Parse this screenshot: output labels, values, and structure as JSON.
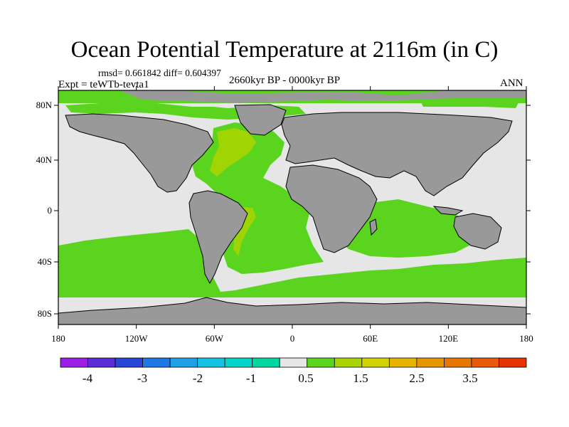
{
  "title": "Ocean Potential Temperature at 2116m (in C)",
  "stats": "rmsd= 0.661842 diff= 0.604397",
  "experiment": "Expt = teWTb-tevta1",
  "period": "2660kyr BP - 0000kyr BP",
  "season": "ANN",
  "colors": {
    "land": "#999999",
    "near_zero": "#e6e6e6",
    "positive_light": "#5ad41e",
    "positive_mid": "#a8d400",
    "cyan": "#00d7b4",
    "coast": "#000000"
  },
  "map": {
    "lat_ticks": [
      "80N",
      "40N",
      "0",
      "40S",
      "80S"
    ],
    "lon_ticks": [
      "180",
      "120W",
      "60W",
      "0",
      "60E",
      "120E",
      "180"
    ]
  },
  "colorbar": {
    "colors": [
      "#9b1ee6",
      "#5a2dd7",
      "#2846d7",
      "#1e78e6",
      "#1ea0e6",
      "#14c3e1",
      "#00d7c8",
      "#00d7a0",
      "#e6e6e6",
      "#5ad41e",
      "#a8d400",
      "#d2d200",
      "#e6b400",
      "#e69600",
      "#e67800",
      "#e65a0a",
      "#e63200"
    ],
    "labels": [
      "-4",
      "-3",
      "-2",
      "-1",
      "0.5",
      "1.5",
      "2.5",
      "3.5"
    ]
  }
}
